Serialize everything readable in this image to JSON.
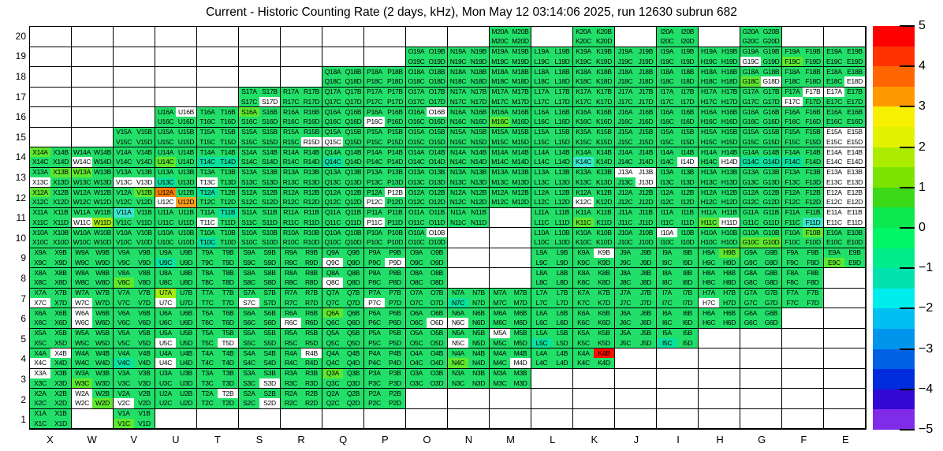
{
  "title": "Current - Historic Counting Rate (2 days, kHz), Mon May 12 03:14:06 2025, run 12630 subrun 682",
  "chart_data": {
    "type": "heatmap",
    "title": "Current - Historic Counting Rate (2 days, kHz), Mon May 12 03:14:06 2025, run 12630 subrun 682",
    "x_axis_labels": [
      "X",
      "W",
      "V",
      "U",
      "T",
      "S",
      "R",
      "Q",
      "P",
      "O",
      "N",
      "M",
      "L",
      "K",
      "J",
      "I",
      "H",
      "G",
      "F",
      "E"
    ],
    "y_axis_labels": [
      "20",
      "19",
      "18",
      "17",
      "16",
      "15",
      "14",
      "13",
      "12",
      "11",
      "10",
      "9",
      "8",
      "7",
      "6",
      "5",
      "4",
      "3",
      "2",
      "1"
    ],
    "quadrant_suffixes": [
      "A",
      "B",
      "C",
      "D"
    ],
    "label_rule": "each populated cell shows four channel labels: <column><row>A <column><row>B on top line, <column><row>C <column><row>D on bottom line; missing cells are blank white",
    "palette": {
      "g": "#22DF69",
      "G": "#5FE72F",
      "y": "#A4EA12",
      "t": "#0AE19E",
      "c": "#3CE6CE",
      "o": "#FF7F00",
      "O": "#FFA01E",
      "r": "#FF0D00",
      "w": "#FFFFFF"
    },
    "code_values_kHz": {
      "g": "~0",
      "G": "~+1.5",
      "y": "~+2",
      "t": "~-1",
      "c": "~-2",
      "o": "~+3.5",
      "O": "~+3",
      "r": "~+5",
      "w": "no data / out of scale"
    },
    "rows": [
      {
        "row": 20,
        "cells": {
          "M": "gggg",
          "K": "gggg",
          "I": "gggg",
          "G": "gggg"
        }
      },
      {
        "row": 19,
        "cells": {
          "O": "gggg",
          "N": "gggg",
          "M": "gggg",
          "L": "gggg",
          "K": "gggg",
          "J": "gggg",
          "I": "gggg",
          "H": "gggg",
          "G": "ggwg",
          "F": "ggGg",
          "E": "gggg"
        }
      },
      {
        "row": 18,
        "cells": {
          "Q": "gggg",
          "P": "gggg",
          "O": "gggg",
          "N": "gggg",
          "M": "gggg",
          "L": "gggg",
          "K": "gggg",
          "J": "gggg",
          "I": "gggg",
          "H": "gggg",
          "G": "ggGw",
          "F": "gggg",
          "E": "gggw"
        }
      },
      {
        "row": 17,
        "cells": {
          "S": "gggw",
          "R": "gggg",
          "Q": "gggg",
          "P": "gggg",
          "O": "gggg",
          "N": "gggg",
          "M": "gggg",
          "L": "gggg",
          "K": "gggg",
          "J": "gggg",
          "I": "gggg",
          "H": "gggg",
          "G": "gggg",
          "F": "gwwg",
          "E": "wggg"
        }
      },
      {
        "row": 16,
        "cells": {
          "U": "gwgg",
          "T": "gggg",
          "S": "Gggg",
          "R": "gggg",
          "Q": "gggg",
          "P": "ggwg",
          "O": "gwgg",
          "N": "gggg",
          "M": "ggGg",
          "L": "gggg",
          "K": "gggg",
          "J": "gggg",
          "I": "gggg",
          "H": "gggg",
          "G": "gggg",
          "F": "gggg",
          "E": "gggg"
        }
      },
      {
        "row": 15,
        "cells": {
          "V": "gggg",
          "U": "gggg",
          "T": "gggg",
          "S": "gggg",
          "R": "gggw",
          "Q": "ggwg",
          "P": "gggg",
          "O": "gggg",
          "N": "gggg",
          "M": "gggg",
          "L": "gggg",
          "K": "gggg",
          "J": "gggg",
          "I": "gggg",
          "H": "gggg",
          "G": "gggg",
          "F": "gggg",
          "E": "wwww"
        }
      },
      {
        "row": 14,
        "cells": {
          "X": "Gggg",
          "W": "ggwg",
          "V": "gggg",
          "U": "ggGg",
          "T": "ggtt",
          "S": "gggg",
          "R": "gggg",
          "Q": "ggtg",
          "P": "gggg",
          "O": "gggg",
          "N": "gggg",
          "M": "gggg",
          "L": "gggg",
          "K": "ggcg",
          "J": "gggg",
          "I": "gggw",
          "H": "gggw",
          "G": "ggtt",
          "F": "ggtg",
          "E": "wwww"
        }
      },
      {
        "row": 13,
        "cells": {
          "X": "gGwg",
          "W": "Gggg",
          "V": "ggww",
          "U": "ggtg",
          "T": "ggwg",
          "S": "gggg",
          "R": "gggg",
          "Q": "gggg",
          "P": "gggg",
          "O": "gggg",
          "N": "gggg",
          "M": "gggg",
          "L": "gggg",
          "K": "gggg",
          "J": "wwgw",
          "I": "gggg",
          "H": "gggg",
          "G": "gggg",
          "F": "gggg",
          "E": "wwww"
        }
      },
      {
        "row": 12,
        "cells": {
          "X": "Gggg",
          "W": "gggg",
          "V": "gGgg",
          "U": "ogwO",
          "T": "tggg",
          "S": "gggg",
          "R": "gggg",
          "Q": "gggg",
          "P": "gwwg",
          "O": "gggg",
          "N": "gggg",
          "M": "gggg",
          "L": "gggg",
          "K": "ggwg",
          "J": "gggg",
          "I": "gggg",
          "H": "gggg",
          "G": "gggg",
          "F": "gggg",
          "E": "wwww"
        }
      },
      {
        "row": 11,
        "cells": {
          "X": "gggg",
          "W": "ggwy",
          "V": "cggg",
          "U": "gggg",
          "T": "gtwg",
          "S": "gggg",
          "R": "gggg",
          "Q": "gggg",
          "P": "ggwg",
          "O": "gggg",
          "N": "gggg",
          "L": "gggg",
          "K": "ggGg",
          "J": "gggg",
          "I": "gggg",
          "H": "ggGw",
          "G": "gggg",
          "F": "gggc",
          "E": "wwww"
        }
      },
      {
        "row": 10,
        "cells": {
          "X": "gggg",
          "W": "gggg",
          "V": "gggg",
          "U": "gggg",
          "T": "ggtg",
          "S": "gggg",
          "R": "gggg",
          "Q": "gggg",
          "P": "gggg",
          "O": "gwgg",
          "L": "gggg",
          "K": "gggg",
          "J": "gggg",
          "I": "wggg",
          "H": "gggg",
          "G": "ggGG",
          "F": "gGgg",
          "E": "gggg"
        }
      },
      {
        "row": 9,
        "cells": {
          "X": "gggg",
          "W": "gggg",
          "V": "gggg",
          "U": "ggtg",
          "T": "gggg",
          "S": "gggg",
          "R": "gggg",
          "Q": "ggwg",
          "P": "gggw",
          "O": "gggg",
          "L": "gggg",
          "K": "gwgg",
          "J": "gggg",
          "I": "gggg",
          "H": "gGgg",
          "G": "gggg",
          "F": "gggg",
          "E": "ggGg"
        }
      },
      {
        "row": 8,
        "cells": {
          "X": "gggg",
          "W": "gggg",
          "V": "ggGg",
          "U": "gggg",
          "T": "gggg",
          "S": "gggg",
          "R": "gggg",
          "Q": "ggwg",
          "P": "gggg",
          "O": "gggg",
          "L": "gggg",
          "K": "gggg",
          "J": "gggg",
          "I": "gggg",
          "H": "gggg",
          "G": "gggg",
          "F": "gggg"
        }
      },
      {
        "row": 7,
        "cells": {
          "X": "ggwg",
          "W": "ggwg",
          "V": "gggg",
          "U": "ygwg",
          "T": "gggg",
          "S": "ggwg",
          "R": "gggg",
          "Q": "gggg",
          "P": "ggwg",
          "O": "gggg",
          "N": "ggtg",
          "M": "gggg",
          "L": "gggg",
          "K": "gggg",
          "J": "gggg",
          "I": "gggg",
          "H": "ggwg",
          "G": "gggg",
          "F": "gggg"
        }
      },
      {
        "row": 6,
        "cells": {
          "X": "gggg",
          "W": "wgwg",
          "V": "gggg",
          "U": "gggg",
          "T": "gggg",
          "S": "gggg",
          "R": "ggwg",
          "Q": "Gggg",
          "P": "gggg",
          "O": "gggw",
          "N": "ggwg",
          "M": "gggg",
          "L": "gggg",
          "K": "gggg",
          "J": "gggg",
          "I": "gggg",
          "H": "gggg",
          "G": "gggg"
        }
      },
      {
        "row": 5,
        "cells": {
          "X": "gggg",
          "W": "gggg",
          "V": "gggg",
          "U": "ggwg",
          "T": "gggw",
          "S": "gggg",
          "R": "gggg",
          "Q": "gggg",
          "P": "gggg",
          "O": "gggg",
          "N": "ggwg",
          "M": "wggg",
          "L": "ggtg",
          "K": "gggg",
          "J": "gggg",
          "I": "ggtg"
        }
      },
      {
        "row": 4,
        "cells": {
          "X": "gwwg",
          "W": "gggg",
          "V": "ggtg",
          "U": "ggwg",
          "T": "gggg",
          "S": "gggg",
          "R": "gwgg",
          "Q": "gggg",
          "P": "gggg",
          "O": "gggg",
          "N": "ggGg",
          "M": "gggw",
          "L": "gggg",
          "K": "grgg"
        }
      },
      {
        "row": 3,
        "cells": {
          "X": "wggg",
          "W": "ggGg",
          "V": "gggg",
          "U": "gggg",
          "T": "gggg",
          "S": "gggw",
          "R": "gggg",
          "Q": "Gggg",
          "P": "gggg",
          "O": "gggg",
          "N": "gggg",
          "M": "gggg"
        }
      },
      {
        "row": 2,
        "cells": {
          "X": "gggg",
          "W": "wgwG",
          "V": "ggwg",
          "U": "gggg",
          "T": "gwgg",
          "S": "gggw",
          "R": "gggg",
          "Q": "gggg",
          "P": "gggg"
        }
      },
      {
        "row": 1,
        "cells": {
          "X": "gggg",
          "V": "ggGg"
        }
      }
    ],
    "colorbar": {
      "min": -5,
      "max": 5,
      "tick_labels": [
        "5",
        "4",
        "3",
        "2",
        "1",
        "0",
        "−1",
        "−2",
        "−3",
        "−4",
        "−5"
      ],
      "bands_top_to_bottom": [
        "#FF0000",
        "#FF3300",
        "#FF6600",
        "#FF9900",
        "#F7F000",
        "#E3F200",
        "#ACEC00",
        "#7CE400",
        "#3BD918",
        "#0CE84E",
        "#00F567",
        "#00EC8B",
        "#00E2AE",
        "#00EDED",
        "#00C0F2",
        "#0095EC",
        "#0061E6",
        "#002CDD",
        "#3208D2",
        "#7F2BE8"
      ]
    },
    "grid_on": true,
    "legend_position": "right-colorbar"
  }
}
